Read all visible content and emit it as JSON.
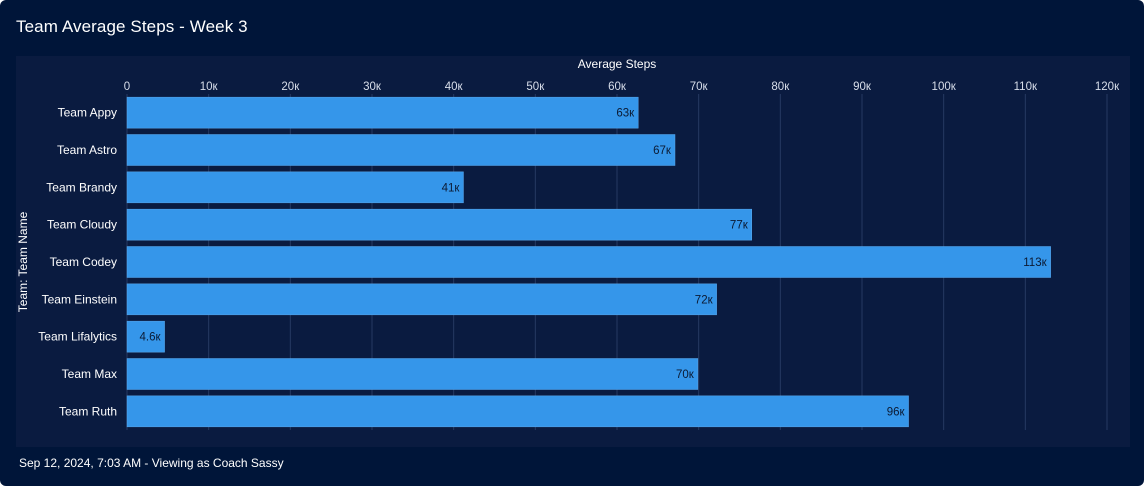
{
  "header": {
    "title": "Team Average Steps - Week 3"
  },
  "footer": {
    "text": "Sep 12, 2024, 7:03 AM - Viewing as Coach Sassy"
  },
  "colors": {
    "bar": "#3596ea",
    "background": "#001539",
    "plot": "#0a1b40",
    "grid": "#263a62"
  },
  "chart_data": {
    "type": "bar",
    "orientation": "horizontal",
    "title": "Team Average Steps - Week 3",
    "xlabel": "Average Steps",
    "ylabel": "Team: Team Name",
    "xlim": [
      0,
      120000
    ],
    "x_ticks": [
      0,
      10000,
      20000,
      30000,
      40000,
      50000,
      60000,
      70000,
      80000,
      90000,
      100000,
      110000,
      120000
    ],
    "x_tick_labels": [
      "0",
      "10к",
      "20к",
      "30к",
      "40к",
      "50к",
      "60к",
      "70к",
      "80к",
      "90к",
      "100к",
      "110к",
      "120к"
    ],
    "categories": [
      "Team Appy",
      "Team Astro",
      "Team Brandy",
      "Team Cloudy",
      "Team Codey",
      "Team Einstein",
      "Team Lifalytics",
      "Team Max",
      "Team Ruth"
    ],
    "values": [
      62600,
      67100,
      41200,
      76500,
      113100,
      72200,
      4600,
      69900,
      95700
    ],
    "value_labels": [
      "63к",
      "67к",
      "41к",
      "77к",
      "113к",
      "72к",
      "4.6к",
      "70к",
      "96к"
    ],
    "grid": true,
    "data_labels": "inside-end"
  }
}
